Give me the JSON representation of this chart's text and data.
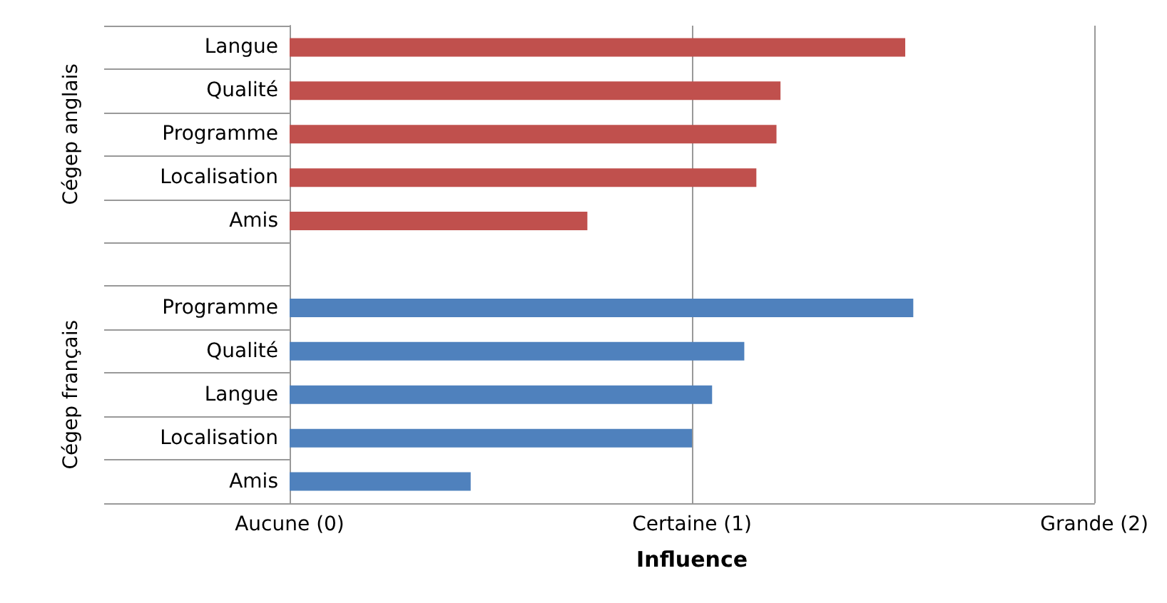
{
  "chart_data": {
    "type": "bar",
    "orientation": "horizontal",
    "xlabel": "Influence",
    "categories": [
      "Langue",
      "Qualité",
      "Programme",
      "Localisation",
      "Amis",
      null,
      "Programme",
      "Qualité",
      "Langue",
      "Localisation",
      "Amis"
    ],
    "values": [
      1.53,
      1.22,
      1.21,
      1.16,
      0.74,
      null,
      1.55,
      1.13,
      1.05,
      1.0,
      0.45
    ],
    "colors": [
      "#c0504d",
      "#c0504d",
      "#c0504d",
      "#c0504d",
      "#c0504d",
      null,
      "#4f81bd",
      "#4f81bd",
      "#4f81bd",
      "#4f81bd",
      "#4f81bd"
    ],
    "annotations": [
      "Cégep anglais",
      "Cégep français"
    ],
    "xlim": [
      0,
      2
    ],
    "xticks": [
      {
        "value": 0,
        "label": "Aucune (0)"
      },
      {
        "value": 1,
        "label": "Certaine (1)"
      },
      {
        "value": 2,
        "label": "Grande (2)"
      }
    ],
    "grid": "x"
  }
}
